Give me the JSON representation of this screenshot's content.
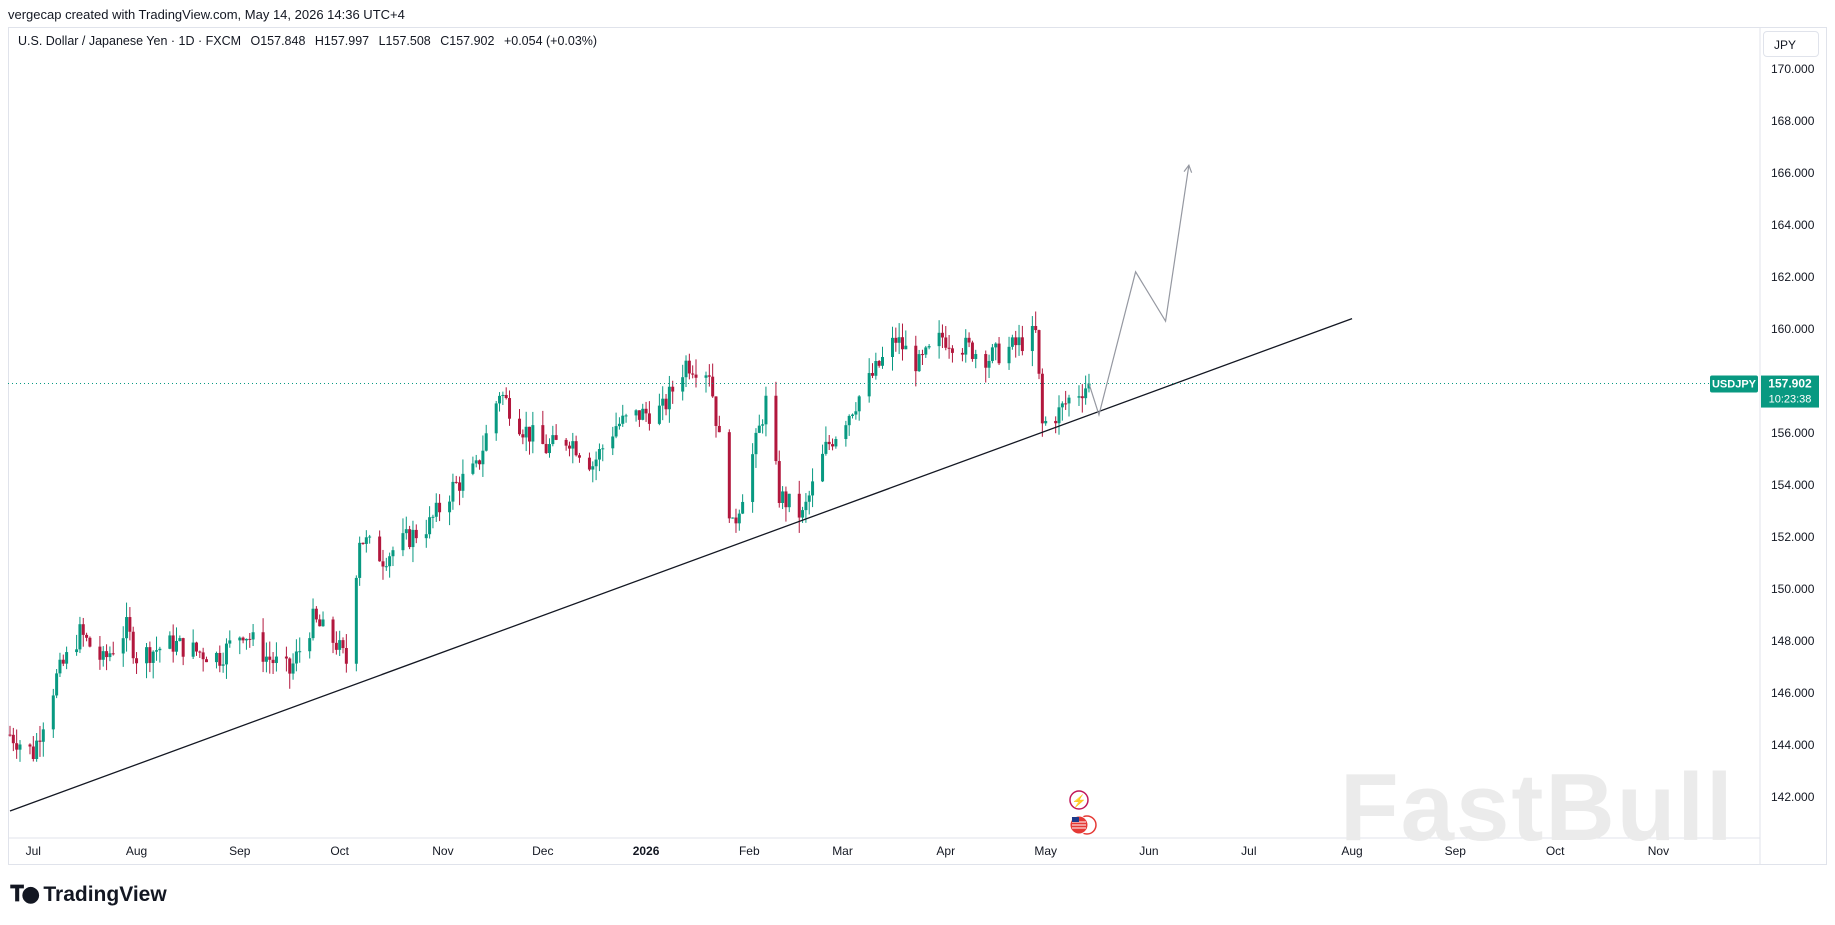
{
  "credit": "vergecap created with TradingView.com, May 14, 2026 14:36 UTC+4",
  "legend": {
    "symbol": "U.S. Dollar / Japanese Yen · 1D · FXCM",
    "open": "O157.848",
    "high": "H157.997",
    "low": "L157.508",
    "close": "C157.902",
    "change": "+0.054 (+0.03%)"
  },
  "currency_button": "JPY",
  "price_tag": {
    "symbol": "USDJPY",
    "price": "157.902",
    "countdown": "10:23:38"
  },
  "footer_brand": "TradingView",
  "watermark": "FastBull",
  "colors": {
    "up": "#089981",
    "down": "#b2173d",
    "lastline": "#089981",
    "trendline": "#131722",
    "projection": "#9598a1"
  },
  "chart_data": {
    "type": "candlestick",
    "y_ticks": [
      "170.000",
      "168.000",
      "166.000",
      "164.000",
      "162.000",
      "160.000",
      "158.000",
      "156.000",
      "154.000",
      "152.000",
      "150.000",
      "148.000",
      "146.000",
      "144.000",
      "142.000"
    ],
    "x_ticks": [
      "Jul",
      "Aug",
      "Sep",
      "Oct",
      "Nov",
      "Dec",
      "2026",
      "Feb",
      "Mar",
      "Apr",
      "May",
      "Jun",
      "Jul",
      "Aug",
      "Sep",
      "Oct",
      "Nov"
    ],
    "ylim": [
      140.5,
      171.5
    ],
    "x_axis_start": "2025-06-24",
    "x_axis_end": "2026-11-30",
    "last_price": 157.902,
    "closes": [
      [
        "2025-06-24",
        144.4
      ],
      [
        "2025-07-01",
        143.7
      ],
      [
        "2025-07-08",
        146.6
      ],
      [
        "2025-07-15",
        148.3
      ],
      [
        "2025-07-22",
        147.2
      ],
      [
        "2025-07-29",
        148.5
      ],
      [
        "2025-08-01",
        147.4
      ],
      [
        "2025-08-05",
        147.6
      ],
      [
        "2025-08-12",
        147.9
      ],
      [
        "2025-08-19",
        147.6
      ],
      [
        "2025-08-26",
        147.4
      ],
      [
        "2025-09-02",
        148.4
      ],
      [
        "2025-09-09",
        147.4
      ],
      [
        "2025-09-16",
        146.8
      ],
      [
        "2025-09-23",
        148.8
      ],
      [
        "2025-09-30",
        147.9
      ],
      [
        "2025-10-03",
        147.2
      ],
      [
        "2025-10-07",
        152.0
      ],
      [
        "2025-10-14",
        151.2
      ],
      [
        "2025-10-21",
        151.9
      ],
      [
        "2025-10-28",
        152.5
      ],
      [
        "2025-11-04",
        153.9
      ],
      [
        "2025-11-11",
        154.6
      ],
      [
        "2025-11-18",
        157.6
      ],
      [
        "2025-11-25",
        156.2
      ],
      [
        "2025-12-02",
        155.4
      ],
      [
        "2025-12-09",
        155.8
      ],
      [
        "2025-12-16",
        154.8
      ],
      [
        "2025-12-23",
        156.3
      ],
      [
        "2025-12-30",
        156.7
      ],
      [
        "2026-01-06",
        156.9
      ],
      [
        "2026-01-13",
        158.7
      ],
      [
        "2026-01-20",
        158.4
      ],
      [
        "2026-01-23",
        155.7
      ],
      [
        "2026-01-27",
        152.3
      ],
      [
        "2026-02-03",
        155.6
      ],
      [
        "2026-02-06",
        157.2
      ],
      [
        "2026-02-10",
        153.6
      ],
      [
        "2026-02-17",
        152.8
      ],
      [
        "2026-02-24",
        155.4
      ],
      [
        "2026-03-03",
        156.8
      ],
      [
        "2026-03-10",
        158.2
      ],
      [
        "2026-03-17",
        159.6
      ],
      [
        "2026-03-24",
        158.6
      ],
      [
        "2026-03-31",
        159.7
      ],
      [
        "2026-04-07",
        159.3
      ],
      [
        "2026-04-14",
        158.9
      ],
      [
        "2026-04-21",
        159.3
      ],
      [
        "2026-04-28",
        159.8
      ],
      [
        "2026-04-30",
        156.3
      ],
      [
        "2026-05-05",
        156.8
      ],
      [
        "2026-05-08",
        157.3
      ],
      [
        "2026-05-14",
        157.902
      ]
    ],
    "trendline": {
      "from": [
        "2025-06-24",
        142.0
      ],
      "to": [
        "2026-08-01",
        160.4
      ]
    },
    "projection": [
      [
        "2026-05-14",
        157.9
      ],
      [
        "2026-05-17",
        156.7
      ],
      [
        "2026-05-28",
        162.2
      ],
      [
        "2026-06-06",
        160.3
      ],
      [
        "2026-06-13",
        166.3
      ]
    ],
    "events": [
      "lightning-event",
      "us-flag-event"
    ]
  }
}
